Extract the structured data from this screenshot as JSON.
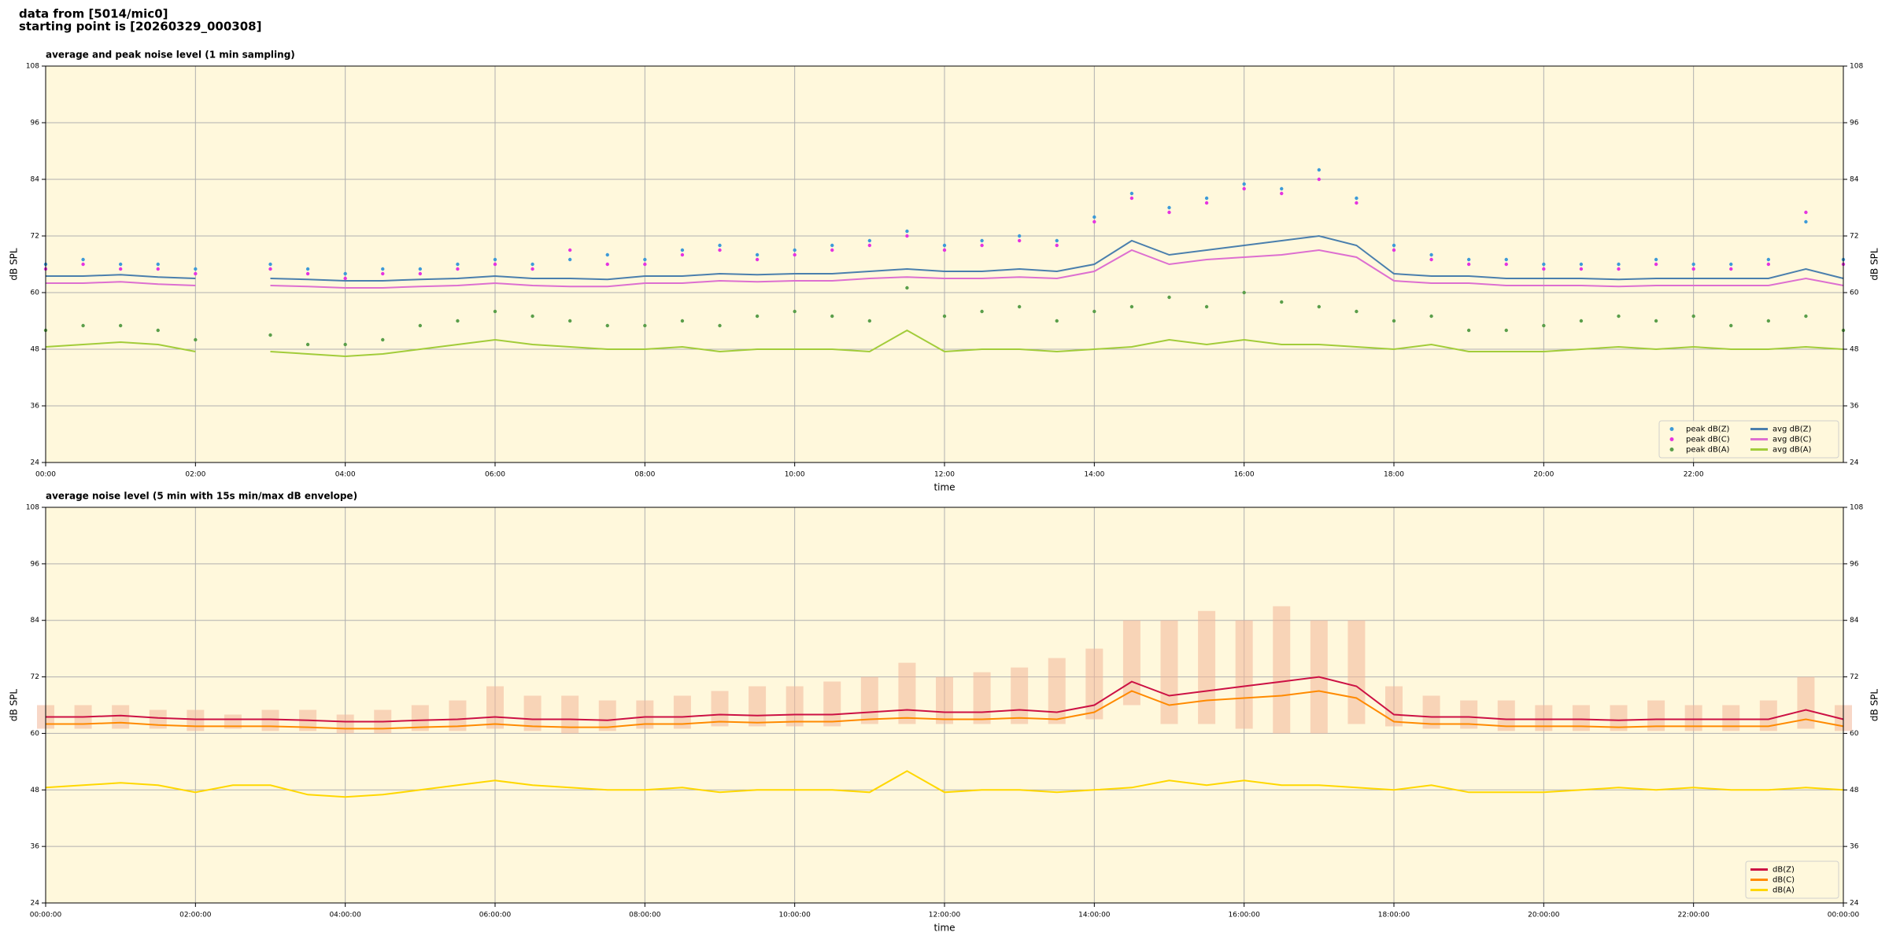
{
  "header": [
    "data from [5014/mic0]",
    "starting point is [20260329_000308]"
  ],
  "chart_data": [
    {
      "type": "line",
      "title": "average and peak noise level (1 min sampling)",
      "x_label": "time",
      "y_label": "dB SPL",
      "xlim": [
        0,
        24
      ],
      "ylim": [
        24,
        108
      ],
      "xticks": [
        {
          "value": 0,
          "label": "00:00"
        },
        {
          "value": 2,
          "label": "02:00"
        },
        {
          "value": 4,
          "label": "04:00"
        },
        {
          "value": 6,
          "label": "06:00"
        },
        {
          "value": 8,
          "label": "08:00"
        },
        {
          "value": 10,
          "label": "10:00"
        },
        {
          "value": 12,
          "label": "12:00"
        },
        {
          "value": 14,
          "label": "14:00"
        },
        {
          "value": 16,
          "label": "16:00"
        },
        {
          "value": 18,
          "label": "18:00"
        },
        {
          "value": 20,
          "label": "20:00"
        },
        {
          "value": 22,
          "label": "22:00"
        }
      ],
      "yticks": [
        24,
        36,
        48,
        60,
        72,
        84,
        96,
        108
      ],
      "grid": true,
      "background": "#fff8dc",
      "legend": "lower right",
      "legend_columns": 2,
      "x": [
        0,
        0.5,
        1,
        1.5,
        2,
        2.5,
        3,
        3.5,
        4,
        4.5,
        5,
        5.5,
        6,
        6.5,
        7,
        7.5,
        8,
        8.5,
        9,
        9.5,
        10,
        10.5,
        11,
        11.5,
        12,
        12.5,
        13,
        13.5,
        14,
        14.5,
        15,
        15.5,
        16,
        16.5,
        17,
        17.5,
        18,
        18.5,
        19,
        19.5,
        20,
        20.5,
        21,
        21.5,
        22,
        22.5,
        23,
        23.5,
        24
      ],
      "series": [
        {
          "name": "peak dB(Z)",
          "kind": "scatter",
          "color": "#3d9ad8",
          "values": [
            66,
            67,
            66,
            66,
            65,
            null,
            66,
            65,
            64,
            65,
            65,
            66,
            67,
            66,
            67,
            68,
            67,
            69,
            70,
            68,
            69,
            70,
            71,
            73,
            70,
            71,
            72,
            71,
            76,
            81,
            78,
            80,
            83,
            82,
            86,
            80,
            70,
            68,
            67,
            67,
            66,
            66,
            66,
            67,
            66,
            66,
            67,
            75,
            67
          ]
        },
        {
          "name": "peak dB(C)",
          "kind": "scatter",
          "color": "#e533e0",
          "values": [
            65,
            66,
            65,
            65,
            64,
            null,
            65,
            64,
            63,
            64,
            64,
            65,
            66,
            65,
            69,
            66,
            66,
            68,
            69,
            67,
            68,
            69,
            70,
            72,
            69,
            70,
            71,
            70,
            75,
            80,
            77,
            79,
            82,
            81,
            84,
            79,
            69,
            67,
            66,
            66,
            65,
            65,
            65,
            66,
            65,
            65,
            66,
            77,
            66
          ]
        },
        {
          "name": "peak dB(A)",
          "kind": "scatter",
          "color": "#5a9e4a",
          "values": [
            52,
            53,
            53,
            52,
            50,
            null,
            51,
            49,
            49,
            50,
            53,
            54,
            56,
            55,
            54,
            53,
            53,
            54,
            53,
            55,
            56,
            55,
            54,
            61,
            55,
            56,
            57,
            54,
            56,
            57,
            59,
            57,
            60,
            58,
            57,
            56,
            54,
            55,
            52,
            52,
            53,
            54,
            55,
            54,
            55,
            53,
            54,
            55,
            52
          ]
        },
        {
          "name": "avg dB(Z)",
          "kind": "line",
          "color": "#4a7fad",
          "values": [
            63.5,
            63.5,
            63.8,
            63.3,
            63,
            null,
            63,
            62.8,
            62.5,
            62.5,
            62.8,
            63,
            63.5,
            63,
            63,
            62.8,
            63.5,
            63.5,
            64,
            63.8,
            64,
            64,
            64.5,
            65,
            64.5,
            64.5,
            65,
            64.5,
            66,
            71,
            68,
            69,
            70,
            71,
            72,
            70,
            64,
            63.5,
            63.5,
            63,
            63,
            63,
            62.8,
            63,
            63,
            63,
            63,
            65,
            63
          ]
        },
        {
          "name": "avg dB(C)",
          "kind": "line",
          "color": "#dd6fd0",
          "values": [
            62,
            62,
            62.3,
            61.8,
            61.5,
            null,
            61.5,
            61.3,
            61,
            61,
            61.3,
            61.5,
            62,
            61.5,
            61.3,
            61.3,
            62,
            62,
            62.5,
            62.3,
            62.5,
            62.5,
            63,
            63.3,
            63,
            63,
            63.3,
            63,
            64.5,
            69,
            66,
            67,
            67.5,
            68,
            69,
            67.5,
            62.5,
            62,
            62,
            61.5,
            61.5,
            61.5,
            61.3,
            61.5,
            61.5,
            61.5,
            61.5,
            63,
            61.5
          ]
        },
        {
          "name": "avg dB(A)",
          "kind": "line",
          "color": "#a2cc3a",
          "values": [
            48.5,
            49,
            49.5,
            49,
            47.5,
            null,
            47.5,
            47,
            46.5,
            47,
            48,
            49,
            50,
            49,
            48.5,
            48,
            48,
            48.5,
            47.5,
            48,
            48,
            48,
            47.5,
            52,
            47.5,
            48,
            48,
            47.5,
            48,
            48.5,
            50,
            49,
            50,
            49,
            49,
            48.5,
            48,
            49,
            47.5,
            47.5,
            47.5,
            48,
            48.5,
            48,
            48.5,
            48,
            48,
            48.5,
            48
          ]
        }
      ]
    },
    {
      "type": "line",
      "title": "average noise level (5 min with 15s min/max dB envelope)",
      "x_label": "time",
      "y_label": "dB SPL",
      "xlim": [
        0,
        24
      ],
      "ylim": [
        24,
        108
      ],
      "xticks": [
        {
          "value": 0,
          "label": "00:00:00"
        },
        {
          "value": 2,
          "label": "02:00:00"
        },
        {
          "value": 4,
          "label": "04:00:00"
        },
        {
          "value": 6,
          "label": "06:00:00"
        },
        {
          "value": 8,
          "label": "08:00:00"
        },
        {
          "value": 10,
          "label": "10:00:00"
        },
        {
          "value": 12,
          "label": "12:00:00"
        },
        {
          "value": 14,
          "label": "14:00:00"
        },
        {
          "value": 16,
          "label": "16:00:00"
        },
        {
          "value": 18,
          "label": "18:00:00"
        },
        {
          "value": 20,
          "label": "20:00:00"
        },
        {
          "value": 22,
          "label": "22:00:00"
        },
        {
          "value": 24,
          "label": "00:00:00"
        }
      ],
      "yticks": [
        24,
        36,
        48,
        60,
        72,
        84,
        96,
        108
      ],
      "grid": true,
      "background": "#fff8dc",
      "legend": "lower right",
      "legend_columns": 1,
      "x": [
        0,
        0.5,
        1,
        1.5,
        2,
        2.5,
        3,
        3.5,
        4,
        4.5,
        5,
        5.5,
        6,
        6.5,
        7,
        7.5,
        8,
        8.5,
        9,
        9.5,
        10,
        10.5,
        11,
        11.5,
        12,
        12.5,
        13,
        13.5,
        14,
        14.5,
        15,
        15.5,
        16,
        16.5,
        17,
        17.5,
        18,
        18.5,
        19,
        19.5,
        20,
        20.5,
        21,
        21.5,
        22,
        22.5,
        23,
        23.5,
        24
      ],
      "envelope": {
        "color": "#f4b89a",
        "upper": [
          66,
          66,
          66,
          65,
          65,
          64,
          65,
          65,
          64,
          65,
          66,
          67,
          70,
          68,
          68,
          67,
          67,
          68,
          69,
          70,
          70,
          71,
          72,
          75,
          72,
          73,
          74,
          76,
          78,
          84,
          84,
          86,
          84,
          87,
          84,
          84,
          70,
          68,
          67,
          67,
          66,
          66,
          66,
          67,
          66,
          66,
          67,
          72,
          66
        ],
        "lower": [
          61,
          61,
          61,
          61,
          60.5,
          61,
          60.5,
          60.5,
          60,
          60,
          60.5,
          60.5,
          61,
          60.5,
          60,
          60.5,
          61,
          61,
          61.5,
          61.5,
          61.5,
          61.5,
          62,
          62,
          62,
          62,
          62,
          62,
          63,
          66,
          62,
          62,
          61,
          60,
          60,
          62,
          61.5,
          61,
          61,
          60.5,
          60.5,
          60.5,
          60.5,
          60.5,
          60.5,
          60.5,
          60.5,
          61,
          60.5
        ]
      },
      "series": [
        {
          "name": "dB(Z)",
          "kind": "line",
          "color": "#cc1144",
          "values": [
            63.5,
            63.5,
            63.8,
            63.3,
            63,
            63,
            63,
            62.8,
            62.5,
            62.5,
            62.8,
            63,
            63.5,
            63,
            63,
            62.8,
            63.5,
            63.5,
            64,
            63.8,
            64,
            64,
            64.5,
            65,
            64.5,
            64.5,
            65,
            64.5,
            66,
            71,
            68,
            69,
            70,
            71,
            72,
            70,
            64,
            63.5,
            63.5,
            63,
            63,
            63,
            62.8,
            63,
            63,
            63,
            63,
            65,
            63
          ]
        },
        {
          "name": "dB(C)",
          "kind": "line",
          "color": "#ff8a00",
          "values": [
            62,
            62,
            62.3,
            61.8,
            61.5,
            61.5,
            61.5,
            61.3,
            61,
            61,
            61.3,
            61.5,
            62,
            61.5,
            61.3,
            61.3,
            62,
            62,
            62.5,
            62.3,
            62.5,
            62.5,
            63,
            63.3,
            63,
            63,
            63.3,
            63,
            64.5,
            69,
            66,
            67,
            67.5,
            68,
            69,
            67.5,
            62.5,
            62,
            62,
            61.5,
            61.5,
            61.5,
            61.3,
            61.5,
            61.5,
            61.5,
            61.5,
            63,
            61.5
          ]
        },
        {
          "name": "dB(A)",
          "kind": "line",
          "color": "#ffd700",
          "values": [
            48.5,
            49,
            49.5,
            49,
            47.5,
            49,
            49,
            47,
            46.5,
            47,
            48,
            49,
            50,
            49,
            48.5,
            48,
            48,
            48.5,
            47.5,
            48,
            48,
            48,
            47.5,
            52,
            47.5,
            48,
            48,
            47.5,
            48,
            48.5,
            50,
            49,
            50,
            49,
            49,
            48.5,
            48,
            49,
            47.5,
            47.5,
            47.5,
            48,
            48.5,
            48,
            48.5,
            48,
            48,
            48.5,
            48
          ]
        }
      ]
    }
  ]
}
